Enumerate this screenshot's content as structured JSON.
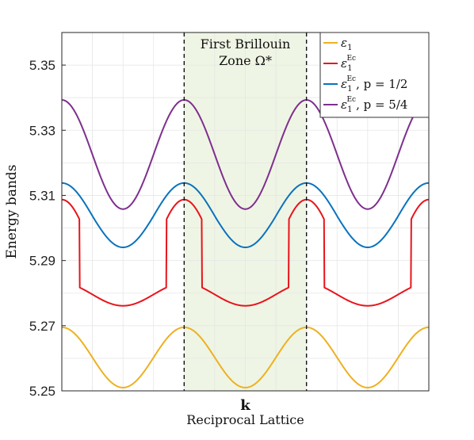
{
  "chart_data": {
    "type": "line",
    "title": "",
    "xlabel": "k",
    "xlabel_sub": "Reciprocal Lattice",
    "ylabel": "Energy bands",
    "ylim": [
      5.25,
      5.36
    ],
    "yticks": [
      "5.25",
      "5.27",
      "5.29",
      "5.31",
      "5.33",
      "5.35"
    ],
    "grid": true,
    "legend_position": "top-right",
    "zone_annotation": [
      "First Brillouin",
      "Zone Ω*"
    ],
    "x_periods": 3,
    "zone_period_index": 1,
    "series": [
      {
        "name": "ε1",
        "legend_main": "ε",
        "legend_sub": "1",
        "legend_sup": "",
        "legend_extra": "",
        "color": "#EDB120",
        "min": 5.251,
        "max": 5.2695,
        "gap_cut": null,
        "gap_floor": null
      },
      {
        "name": "ε1^Ec",
        "legend_main": "ε",
        "legend_sub": "1",
        "legend_sup": "Ec",
        "legend_extra": "",
        "color": "#E8141C",
        "min": 5.2771,
        "max": 5.3087,
        "gap_cut": 5.3025,
        "gap_floor": 5.2817
      },
      {
        "name": "ε1^Ec, p = 1/2",
        "legend_main": "ε",
        "legend_sub": "1",
        "legend_sup": "Ec",
        "legend_extra": ", p = 1/2",
        "color": "#0A72BD",
        "min": 5.2936,
        "max": 5.3138,
        "gap_cut": 5.3025,
        "gap_floor": null
      },
      {
        "name": "ε1^Ec, p = 5/4",
        "legend_main": "ε",
        "legend_sub": "1",
        "legend_sup": "Ec",
        "legend_extra": ", p = 5/4",
        "color": "#7E2F8E",
        "min": 5.3058,
        "max": 5.3393,
        "gap_cut": null,
        "gap_floor": null
      }
    ]
  },
  "colors": {
    "zone_fill": "#EFF5E4",
    "axis": "#262626",
    "grid": "#E6E6E6"
  }
}
